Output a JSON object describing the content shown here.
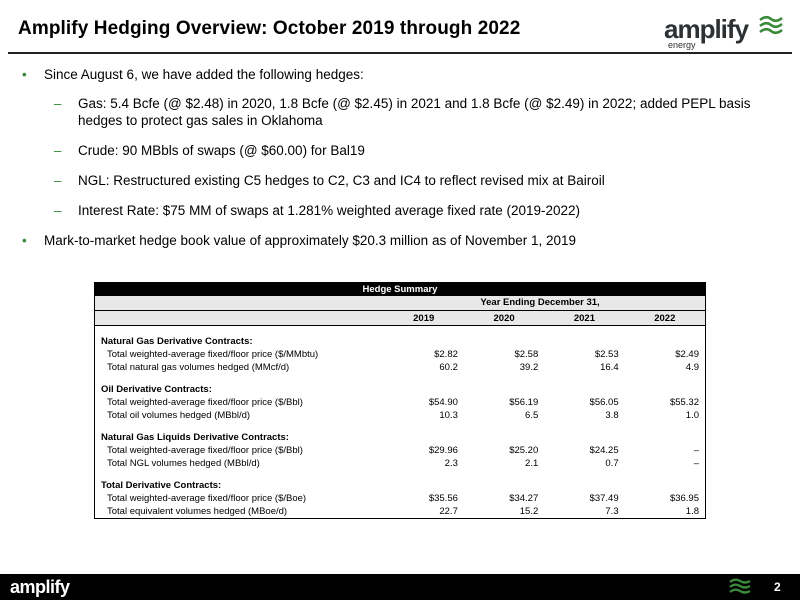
{
  "header": {
    "title": "Amplify Hedging Overview: October 2019 through 2022",
    "logo_main": "amplify",
    "logo_sub": "energy"
  },
  "bullets": [
    "Since August 6, we have added the following hedges:",
    "Mark-to-market hedge book value of approximately $20.3 million as of November 1, 2019"
  ],
  "sub_bullets": [
    "Gas: 5.4 Bcfe (@ $2.48) in 2020, 1.8 Bcfe (@ $2.45) in 2021 and 1.8 Bcfe (@ $2.49) in 2022; added PEPL basis hedges to protect gas sales in Oklahoma",
    "Crude: 90 MBbls of swaps (@ $60.00) for Bal19",
    "NGL: Restructured existing C5 hedges to C2, C3 and IC4 to reflect revised mix at Bairoil",
    "Interest Rate: $75 MM of swaps at 1.281% weighted average fixed rate (2019-2022)"
  ],
  "table": {
    "title": "Hedge Summary",
    "period_header": "Year Ending December 31,",
    "years": [
      "2019",
      "2020",
      "2021",
      "2022"
    ],
    "sections": [
      {
        "heading": "Natural Gas Derivative Contracts:",
        "rows": [
          {
            "label": "Total weighted-average fixed/floor price ($/MMbtu)",
            "values": [
              "$2.82",
              "$2.58",
              "$2.53",
              "$2.49"
            ]
          },
          {
            "label": "Total natural gas volumes hedged (MMcf/d)",
            "values": [
              "60.2",
              "39.2",
              "16.4",
              "4.9"
            ]
          }
        ]
      },
      {
        "heading": "Oil Derivative Contracts:",
        "rows": [
          {
            "label": "Total weighted-average fixed/floor price ($/Bbl)",
            "values": [
              "$54.90",
              "$56.19",
              "$56.05",
              "$55.32"
            ]
          },
          {
            "label": "Total oil volumes hedged (MBbl/d)",
            "values": [
              "10.3",
              "6.5",
              "3.8",
              "1.0"
            ]
          }
        ]
      },
      {
        "heading": "Natural Gas Liquids Derivative Contracts:",
        "rows": [
          {
            "label": "Total weighted-average fixed/floor price ($/Bbl)",
            "values": [
              "$29.96",
              "$25.20",
              "$24.25",
              "–"
            ]
          },
          {
            "label": "Total NGL volumes hedged (MBbl/d)",
            "values": [
              "2.3",
              "2.1",
              "0.7",
              "–"
            ]
          }
        ]
      },
      {
        "heading": "Total Derivative Contracts:",
        "rows": [
          {
            "label": "Total weighted-average fixed/floor price ($/Boe)",
            "values": [
              "$35.56",
              "$34.27",
              "$37.49",
              "$36.95"
            ]
          },
          {
            "label": "Total equivalent volumes hedged (MBoe/d)",
            "values": [
              "22.7",
              "15.2",
              "7.3",
              "1.8"
            ]
          }
        ]
      }
    ]
  },
  "footer": {
    "logo": "amplify",
    "page_number": "2"
  },
  "colors": {
    "brand_green": "#3a8a3a",
    "footer_bg": "#000000"
  }
}
